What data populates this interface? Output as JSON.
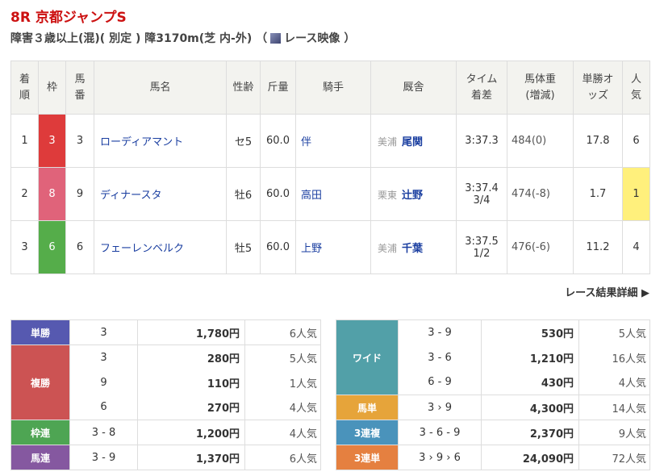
{
  "race": {
    "title": "8R 京都ジャンプS",
    "conditions": "障害３歳以上(混)( 別定 ) 障3170m(芝 内-外)",
    "paren_open": "（",
    "video_label": "レース映像",
    "paren_close": "）"
  },
  "results": {
    "headers": [
      "着順",
      "枠",
      "馬番",
      "馬名",
      "性齢",
      "斤量",
      "騎手",
      "厩舎",
      "タイム着差",
      "馬体重(増減)",
      "単勝オッズ",
      "人気"
    ],
    "rows": [
      {
        "rank": "1",
        "waku": "3",
        "waku_color": "#de3b3b",
        "num": "3",
        "horse": "ローディアマント",
        "sex_age": "セ5",
        "weight": "60.0",
        "jockey": "伴",
        "stable_loc": "美浦",
        "trainer": "尾関",
        "time": "3:37.3",
        "margin": "",
        "body": "484(0)",
        "odds": "17.8",
        "pop": "6"
      },
      {
        "rank": "2",
        "waku": "8",
        "waku_color": "#e0637a",
        "num": "9",
        "horse": "ディナースタ",
        "sex_age": "牡6",
        "weight": "60.0",
        "jockey": "高田",
        "stable_loc": "栗東",
        "trainer": "辻野",
        "time": "3:37.4",
        "margin": "3/4",
        "body": "474(-8)",
        "odds": "1.7",
        "pop": "1"
      },
      {
        "rank": "3",
        "waku": "6",
        "waku_color": "#55ad4a",
        "num": "6",
        "horse": "フェーレンベルク",
        "sex_age": "牡5",
        "weight": "60.0",
        "jockey": "上野",
        "stable_loc": "美浦",
        "trainer": "千葉",
        "time": "3:37.5",
        "margin": "1/2",
        "body": "476(-6)",
        "odds": "11.2",
        "pop": "4"
      }
    ]
  },
  "detail_link": "レース結果詳細 ▶",
  "payouts_left": [
    {
      "label": "単勝",
      "color": "#5659b0",
      "entries": [
        {
          "combo": "3",
          "amount": "1,780円",
          "pop": "6人気"
        }
      ]
    },
    {
      "label": "複勝",
      "color": "#cc5353",
      "entries": [
        {
          "combo": "3",
          "amount": "280円",
          "pop": "5人気"
        },
        {
          "combo": "9",
          "amount": "110円",
          "pop": "1人気"
        },
        {
          "combo": "6",
          "amount": "270円",
          "pop": "4人気"
        }
      ]
    },
    {
      "label": "枠連",
      "color": "#4ea553",
      "entries": [
        {
          "combo": "3 - 8",
          "amount": "1,200円",
          "pop": "4人気"
        }
      ]
    },
    {
      "label": "馬連",
      "color": "#8558a0",
      "entries": [
        {
          "combo": "3 - 9",
          "amount": "1,370円",
          "pop": "6人気"
        }
      ]
    }
  ],
  "payouts_right": [
    {
      "label": "ワイド",
      "color": "#52a0a8",
      "entries": [
        {
          "combo": "3 - 9",
          "amount": "530円",
          "pop": "5人気"
        },
        {
          "combo": "3 - 6",
          "amount": "1,210円",
          "pop": "16人気"
        },
        {
          "combo": "6 - 9",
          "amount": "430円",
          "pop": "4人気"
        }
      ]
    },
    {
      "label": "馬単",
      "color": "#e6a43a",
      "entries": [
        {
          "combo": "3 › 9",
          "amount": "4,300円",
          "pop": "14人気"
        }
      ]
    },
    {
      "label": "3連複",
      "color": "#4a93bb",
      "entries": [
        {
          "combo": "3 - 6 - 9",
          "amount": "2,370円",
          "pop": "9人気"
        }
      ]
    },
    {
      "label": "3連単",
      "color": "#e58040",
      "entries": [
        {
          "combo": "3 › 9 › 6",
          "amount": "24,090円",
          "pop": "72人気"
        }
      ]
    }
  ]
}
